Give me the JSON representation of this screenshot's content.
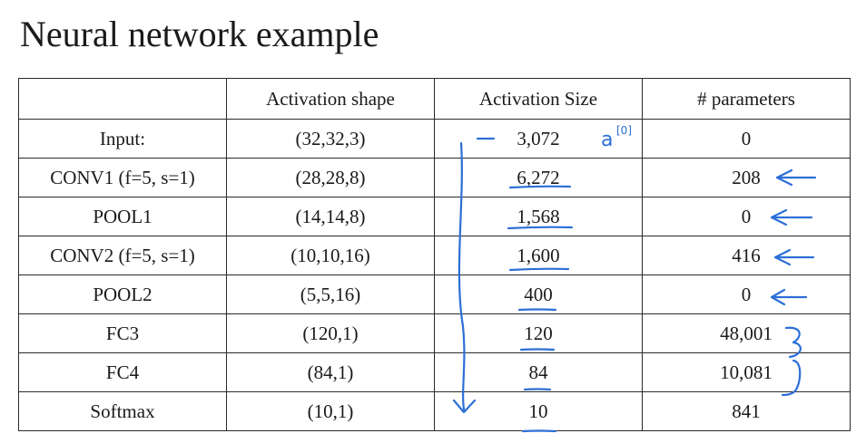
{
  "title": "Neural network example",
  "table": {
    "headers": [
      "",
      "Activation shape",
      "Activation Size",
      "# parameters"
    ],
    "rows": [
      {
        "layer": "Input:",
        "shape": "(32,32,3)",
        "size": "3,072",
        "params": "0"
      },
      {
        "layer": "CONV1 (f=5, s=1)",
        "shape": "(28,28,8)",
        "size": "6,272",
        "params": "208"
      },
      {
        "layer": "POOL1",
        "shape": "(14,14,8)",
        "size": "1,568",
        "params": "0"
      },
      {
        "layer": "CONV2  (f=5, s=1)",
        "shape": "(10,10,16)",
        "size": "1,600",
        "params": "416"
      },
      {
        "layer": "POOL2",
        "shape": "(5,5,16)",
        "size": "400",
        "params": "0"
      },
      {
        "layer": "FC3",
        "shape": "(120,1)",
        "size": "120",
        "params": "48,001"
      },
      {
        "layer": "FC4",
        "shape": "(84,1)",
        "size": "84",
        "params": "10,081"
      },
      {
        "layer": "Softmax",
        "shape": "(10,1)",
        "size": "10",
        "params": "841"
      }
    ]
  },
  "annotations": {
    "input_label": "a[0]",
    "ink_color": "#2c6fd6"
  }
}
